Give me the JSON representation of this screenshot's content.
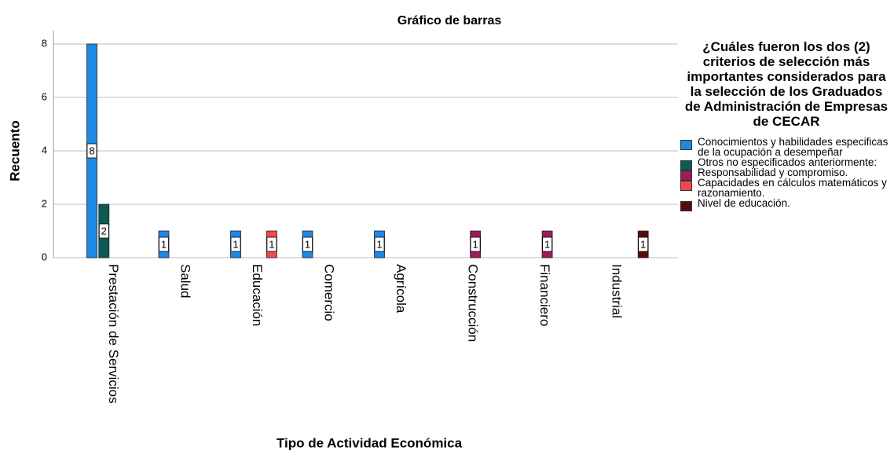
{
  "chart_data": {
    "type": "bar",
    "title": "Gráfico de barras",
    "x_label": "Tipo de Actividad Económica",
    "y_label": "Recuento",
    "legend_title": "¿Cuáles fueron los dos (2) criterios de selección más importantes considerados para la selección de los Graduados de Administración de Empresas de CECAR",
    "categories": [
      "Prestación de Servicios",
      "Salud",
      "Educación",
      "Comercio",
      "Agrícola",
      "Construcción",
      "Financiero",
      "Industrial"
    ],
    "series": [
      {
        "name": "Conocimientos y habilidades especificas de la ocupación a desempeñar",
        "color": "#1e88e5",
        "values": [
          8,
          1,
          1,
          1,
          1,
          null,
          null,
          null
        ]
      },
      {
        "name": "Otros no especificados anteriormente:",
        "color": "#0b5a55",
        "values": [
          2,
          null,
          null,
          null,
          null,
          null,
          null,
          null
        ]
      },
      {
        "name": "Responsabilidad y compromiso.",
        "color": "#9c1c5c",
        "values": [
          null,
          null,
          null,
          null,
          null,
          1,
          1,
          null
        ]
      },
      {
        "name": "Capacidades en cálculos matemáticos y razonamiento.",
        "color": "#f2474d",
        "values": [
          null,
          null,
          1,
          null,
          null,
          null,
          null,
          null
        ]
      },
      {
        "name": "Nivel de educación.",
        "color": "#5c0b0b",
        "values": [
          null,
          null,
          null,
          null,
          null,
          null,
          null,
          1
        ]
      }
    ],
    "ylim": [
      0,
      8.5
    ],
    "yticks": [
      0,
      2,
      4,
      6,
      8
    ],
    "grid": true,
    "legend": "right"
  }
}
